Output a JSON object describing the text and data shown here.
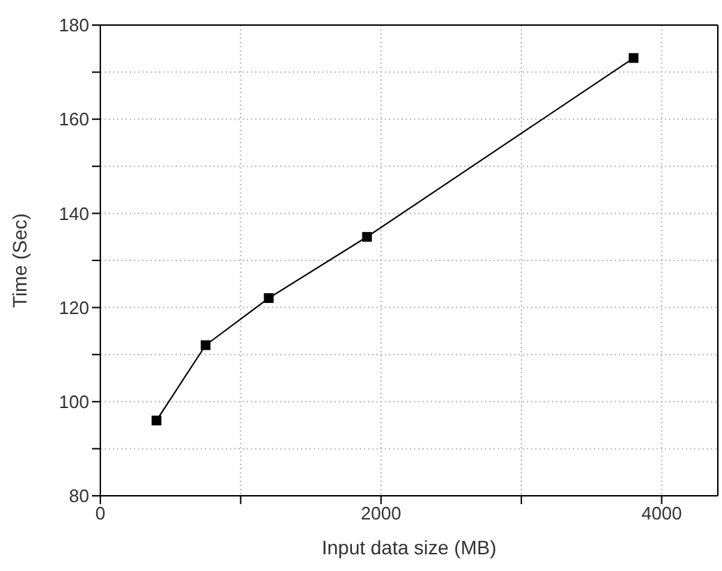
{
  "chart_data": {
    "type": "line",
    "xlabel": "Input data size (MB)",
    "ylabel": "Time (Sec)",
    "x": [
      400,
      750,
      1200,
      1900,
      3800
    ],
    "series": [
      {
        "color": "#000000",
        "values": [
          96,
          112,
          122,
          135,
          173
        ]
      }
    ],
    "xlim": [
      0,
      4400
    ],
    "xticks": [
      0,
      {
        "value": 1000,
        "label": null
      },
      2000,
      {
        "value": 3000,
        "label": null
      },
      4000
    ],
    "ylim": [
      80,
      180
    ],
    "yticks": [
      80,
      {
        "value": 90,
        "label": null
      },
      100,
      {
        "value": 110,
        "label": null
      },
      120,
      {
        "value": 130,
        "label": null
      },
      140,
      {
        "value": 150,
        "label": null
      },
      160,
      {
        "value": 170,
        "label": null
      },
      180
    ],
    "grid": true,
    "marker": "square",
    "line_style": "solid"
  }
}
